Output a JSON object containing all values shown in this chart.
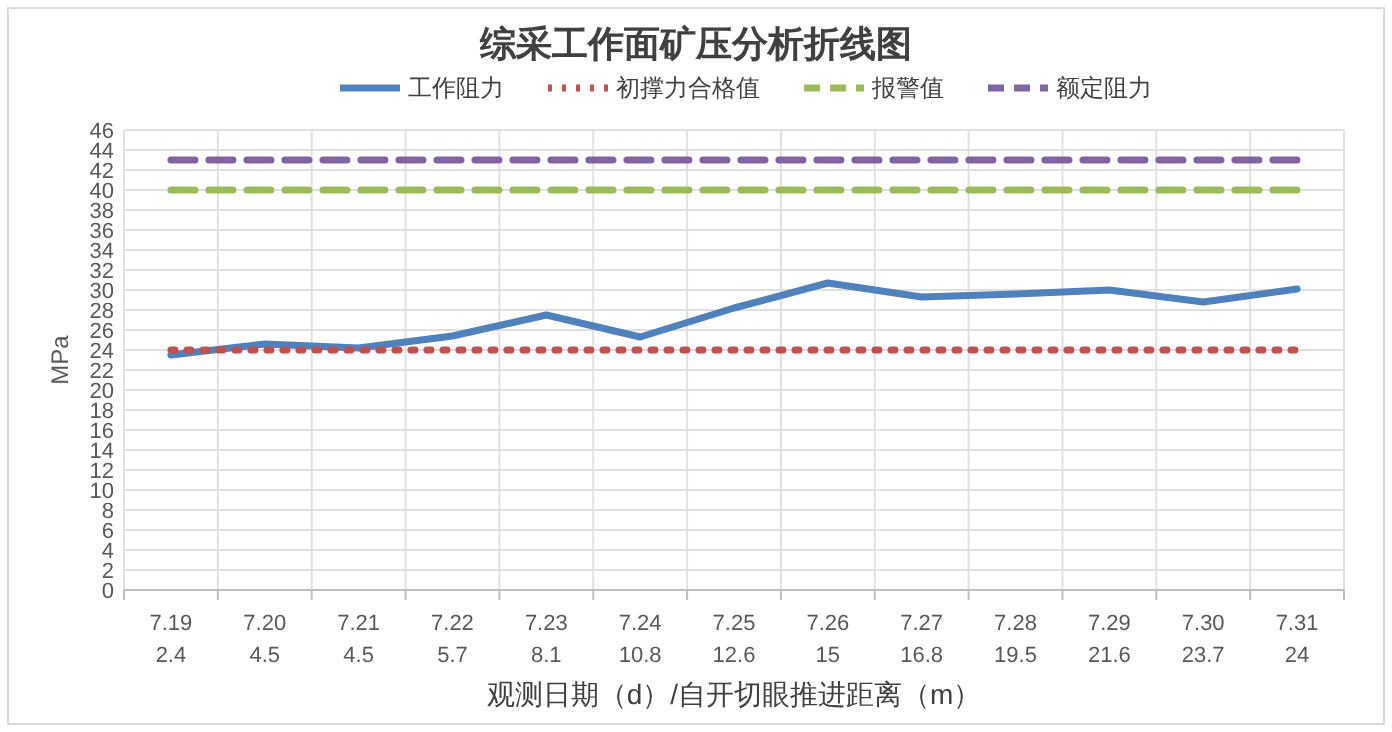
{
  "chart_data": {
    "type": "line",
    "title": "综采工作面矿压分析折线图",
    "xlabel": "观测日期（d）/自开切眼推进距离（m）",
    "ylabel": "MPa",
    "categories": [
      "7.19\n2.4",
      "7.20\n4.5",
      "7.21\n4.5",
      "7.22\n5.7",
      "7.23\n8.1",
      "7.24\n10.8",
      "7.25\n12.6",
      "7.26\n15",
      "7.27\n16.8",
      "7.28\n19.5",
      "7.29\n21.6",
      "7.30\n23.7",
      "7.31\n24"
    ],
    "series": [
      {
        "name": "工作阻力",
        "color": "#4f81bd",
        "line_style": "solid",
        "values": [
          23.5,
          24.6,
          24.2,
          25.4,
          27.5,
          25.3,
          28.2,
          30.7,
          29.3,
          29.6,
          30.0,
          28.8,
          30.1
        ]
      },
      {
        "name": "初撑力合格值",
        "color": "#c0504d",
        "line_style": "dotted",
        "values": [
          24,
          24,
          24,
          24,
          24,
          24,
          24,
          24,
          24,
          24,
          24,
          24,
          24
        ]
      },
      {
        "name": "报警值",
        "color": "#9bbb59",
        "line_style": "dashed",
        "values": [
          40,
          40,
          40,
          40,
          40,
          40,
          40,
          40,
          40,
          40,
          40,
          40,
          40
        ]
      },
      {
        "name": "额定阻力",
        "color": "#8064a2",
        "line_style": "dashed",
        "values": [
          43,
          43,
          43,
          43,
          43,
          43,
          43,
          43,
          43,
          43,
          43,
          43,
          43
        ]
      }
    ],
    "ylim": [
      0,
      46
    ],
    "yticks": [
      0,
      2,
      4,
      6,
      8,
      10,
      12,
      14,
      16,
      18,
      20,
      22,
      24,
      26,
      28,
      30,
      32,
      34,
      36,
      38,
      40,
      42,
      44,
      46
    ],
    "grid": true,
    "legend": "top",
    "marker": "none"
  }
}
